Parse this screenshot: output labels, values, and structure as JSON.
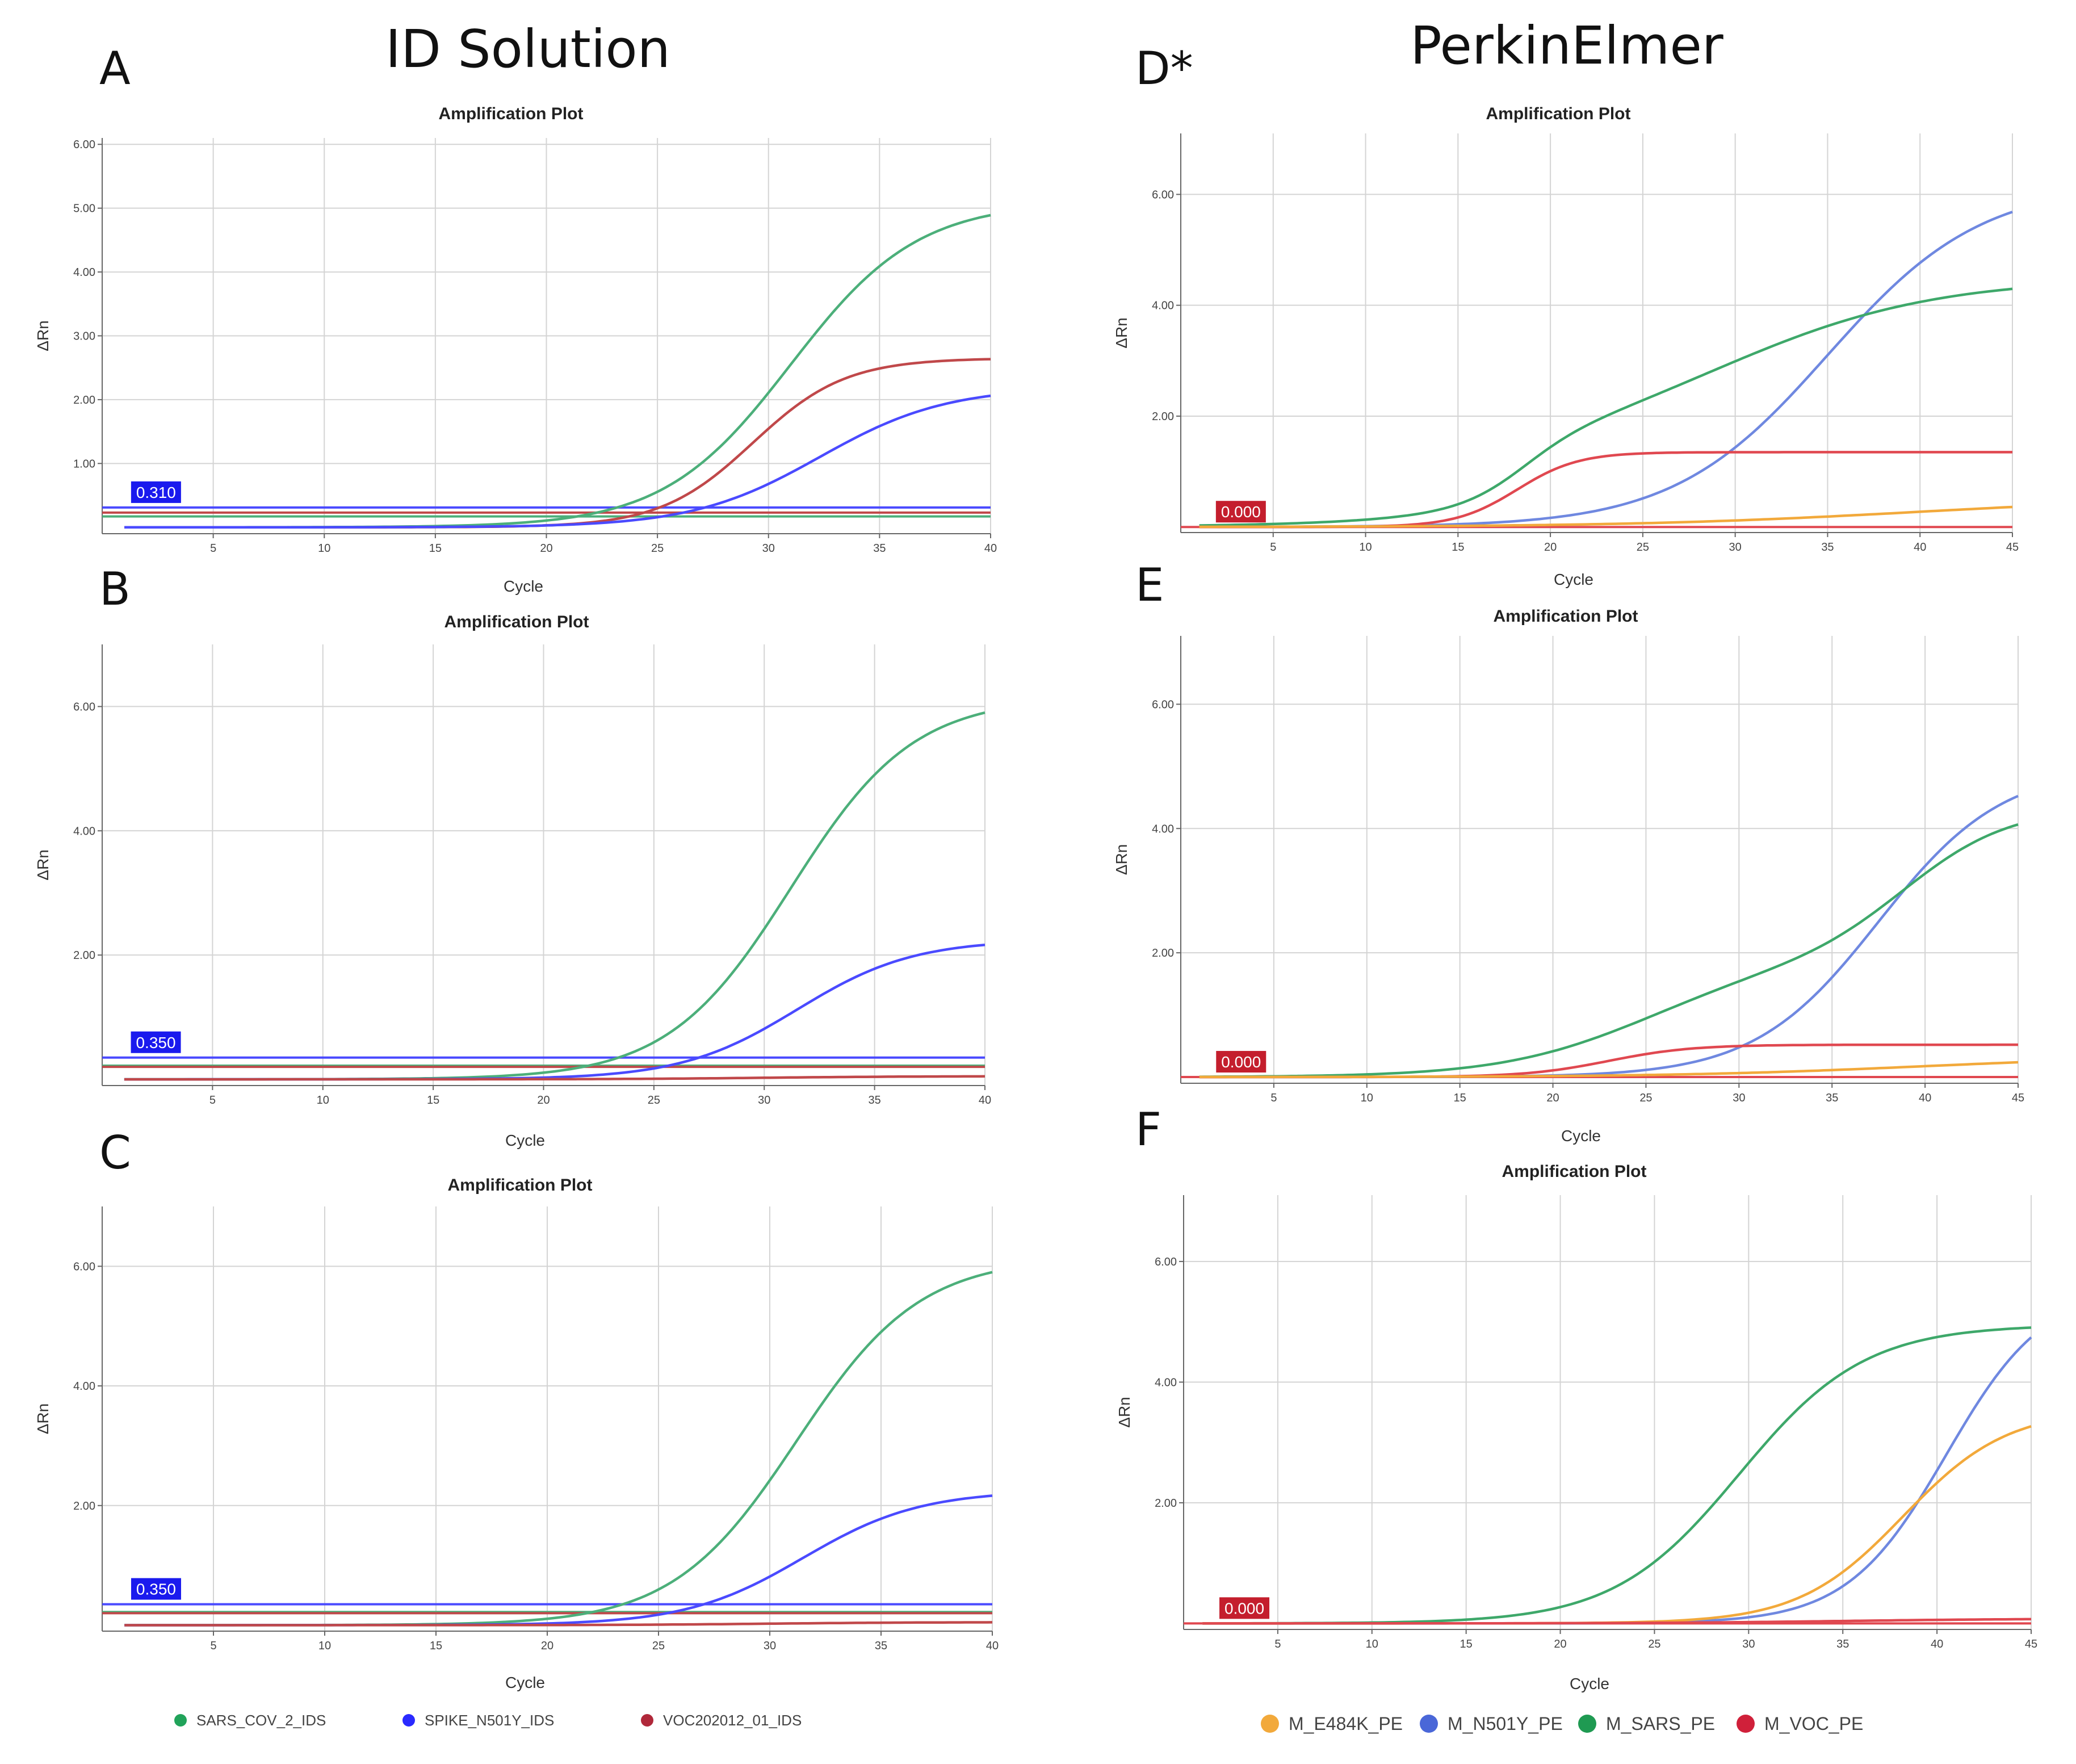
{
  "figure": {
    "column_titles": [
      "ID Solution",
      "PerkinElmer"
    ],
    "series_colors": {
      "SARS_COV_2_IDS": "#4caf7a",
      "SPIKE_N501Y_IDS": "#4a4aff",
      "VOC202012_01_IDS": "#c0484a",
      "M_E484K_PE": "#f2a93b",
      "M_N501Y_PE": "#6f88e0",
      "M_SARS_PE": "#3ea86a",
      "M_VOC_PE": "#e04850"
    },
    "legend_ids": [
      {
        "label": "SARS_COV_2_IDS",
        "color": "#21a35a"
      },
      {
        "label": "SPIKE_N501Y_IDS",
        "color": "#2a2aff"
      },
      {
        "label": "VOC202012_01_IDS",
        "color": "#b0283a"
      }
    ],
    "legend_pe": [
      {
        "label": "M_E484K_PE",
        "color": "#f2a93b"
      },
      {
        "label": "M_N501Y_PE",
        "color": "#4a67d8"
      },
      {
        "label": "M_SARS_PE",
        "color": "#1f9a52"
      },
      {
        "label": "M_VOC_PE",
        "color": "#d0203a"
      }
    ]
  },
  "chart_data": [
    {
      "panel": "A",
      "type": "line",
      "title": "Amplification Plot",
      "xlabel": "Cycle",
      "ylabel": "ΔRn",
      "xlim": [
        0,
        40
      ],
      "ylim": [
        -0.1,
        6.1
      ],
      "xticks": [
        5,
        10,
        15,
        20,
        25,
        30,
        35,
        40
      ],
      "yticks": [
        "1.00",
        "2.00",
        "3.00",
        "4.00",
        "5.00",
        "6.00"
      ],
      "threshold_label": "0.310",
      "thresholds": [
        {
          "series": "SPIKE_N501Y_IDS",
          "value": 0.31
        },
        {
          "series": "VOC202012_01_IDS",
          "value": 0.23
        },
        {
          "series": "SARS_COV_2_IDS",
          "value": 0.17
        }
      ],
      "series": [
        {
          "name": "SARS_COV_2_IDS",
          "top": 5.1,
          "mid": 31,
          "k": 0.35
        },
        {
          "name": "VOC202012_01_IDS",
          "top": 2.65,
          "mid": 29.3,
          "k": 0.48
        },
        {
          "name": "SPIKE_N501Y_IDS",
          "top": 2.2,
          "mid": 32.3,
          "k": 0.35
        }
      ]
    },
    {
      "panel": "B",
      "type": "line",
      "title": "Amplification Plot",
      "xlabel": "Cycle",
      "ylabel": "ΔRn",
      "xlim": [
        0,
        40
      ],
      "ylim": [
        -0.1,
        7.0
      ],
      "xticks": [
        5,
        10,
        15,
        20,
        25,
        30,
        35,
        40
      ],
      "yticks": [
        "2.00",
        "4.00",
        "6.00"
      ],
      "threshold_label": "0.350",
      "thresholds": [
        {
          "series": "SPIKE_N501Y_IDS",
          "value": 0.35
        },
        {
          "series": "SARS_COV_2_IDS",
          "value": 0.22
        },
        {
          "series": "VOC202012_01_IDS",
          "value": 0.2
        }
      ],
      "series": [
        {
          "name": "SARS_COV_2_IDS",
          "top": 6.15,
          "mid": 31.2,
          "k": 0.36
        },
        {
          "name": "SPIKE_N501Y_IDS",
          "top": 2.25,
          "mid": 31.5,
          "k": 0.38
        },
        {
          "name": "VOC202012_01_IDS",
          "top": 0.05,
          "mid": 30,
          "k": 0.3
        }
      ]
    },
    {
      "panel": "C",
      "type": "line",
      "title": "Amplification Plot",
      "xlabel": "Cycle",
      "ylabel": "ΔRn",
      "xlim": [
        0,
        40
      ],
      "ylim": [
        -0.1,
        7.0
      ],
      "xticks": [
        5,
        10,
        15,
        20,
        25,
        30,
        35,
        40
      ],
      "yticks": [
        "2.00",
        "4.00",
        "6.00"
      ],
      "threshold_label": "0.350",
      "thresholds": [
        {
          "series": "SPIKE_N501Y_IDS",
          "value": 0.35
        },
        {
          "series": "SARS_COV_2_IDS",
          "value": 0.22
        },
        {
          "series": "VOC202012_01_IDS",
          "value": 0.2
        }
      ],
      "series": [
        {
          "name": "SARS_COV_2_IDS",
          "top": 6.15,
          "mid": 31.2,
          "k": 0.36
        },
        {
          "name": "SPIKE_N501Y_IDS",
          "top": 2.25,
          "mid": 31.5,
          "k": 0.38
        },
        {
          "name": "VOC202012_01_IDS",
          "top": 0.05,
          "mid": 30,
          "k": 0.3
        }
      ]
    },
    {
      "panel": "D*",
      "type": "line",
      "title": "Amplification Plot",
      "xlabel": "Cycle",
      "ylabel": "ΔRn",
      "xlim": [
        0,
        45
      ],
      "ylim": [
        -0.1,
        7.1
      ],
      "xticks": [
        5,
        10,
        15,
        20,
        25,
        30,
        35,
        40,
        45
      ],
      "yticks": [
        "2.00",
        "4.00",
        "6.00"
      ],
      "threshold_label": "0.000",
      "thresholds": [
        {
          "series": "M_VOC_PE",
          "value": 0.0
        }
      ],
      "series": [
        {
          "name": "M_N501Y_PE",
          "top": 6.2,
          "mid": 35,
          "k": 0.24
        },
        {
          "name": "M_SARS_PE",
          "top": 1.2,
          "mid": 18.5,
          "k": 0.6,
          "top2": 3.3,
          "mid2": 29,
          "k2": 0.17
        },
        {
          "name": "M_VOC_PE",
          "top": 1.35,
          "mid": 18.2,
          "k": 0.6
        },
        {
          "name": "M_E484K_PE",
          "top": 0.55,
          "mid": 40,
          "k": 0.13
        }
      ]
    },
    {
      "panel": "E",
      "type": "line",
      "title": "Amplification Plot",
      "xlabel": "Cycle",
      "ylabel": "ΔRn",
      "xlim": [
        0,
        45
      ],
      "ylim": [
        -0.1,
        7.1
      ],
      "xticks": [
        5,
        10,
        15,
        20,
        25,
        30,
        35,
        40,
        45
      ],
      "yticks": [
        "2.00",
        "4.00",
        "6.00"
      ],
      "threshold_label": "0.000",
      "thresholds": [
        {
          "series": "M_VOC_PE",
          "value": 0.0
        }
      ],
      "series": [
        {
          "name": "M_N501Y_PE",
          "top": 5.0,
          "mid": 37.5,
          "k": 0.3
        },
        {
          "name": "M_SARS_PE",
          "top": 1.85,
          "mid": 25,
          "k": 0.25,
          "top2": 2.5,
          "mid2": 39,
          "k2": 0.35
        },
        {
          "name": "M_VOC_PE",
          "top": 0.52,
          "mid": 23,
          "k": 0.45
        },
        {
          "name": "M_E484K_PE",
          "top": 0.35,
          "mid": 40,
          "k": 0.15
        }
      ]
    },
    {
      "panel": "F",
      "type": "line",
      "title": "Amplification Plot",
      "xlabel": "Cycle",
      "ylabel": "ΔRn",
      "xlim": [
        0,
        45
      ],
      "ylim": [
        -0.1,
        7.1
      ],
      "xticks": [
        5,
        10,
        15,
        20,
        25,
        30,
        35,
        40,
        45
      ],
      "yticks": [
        "2.00",
        "4.00",
        "6.00"
      ],
      "threshold_label": "0.000",
      "thresholds": [
        {
          "series": "M_VOC_PE",
          "value": 0.0
        }
      ],
      "series": [
        {
          "name": "M_SARS_PE",
          "top": 4.95,
          "mid": 29.5,
          "k": 0.3
        },
        {
          "name": "M_N501Y_PE",
          "top": 5.6,
          "mid": 40.5,
          "k": 0.38
        },
        {
          "name": "M_E484K_PE",
          "top": 3.55,
          "mid": 38.2,
          "k": 0.36
        },
        {
          "name": "M_VOC_PE",
          "top": 0.08,
          "mid": 35,
          "k": 0.2
        }
      ]
    }
  ]
}
